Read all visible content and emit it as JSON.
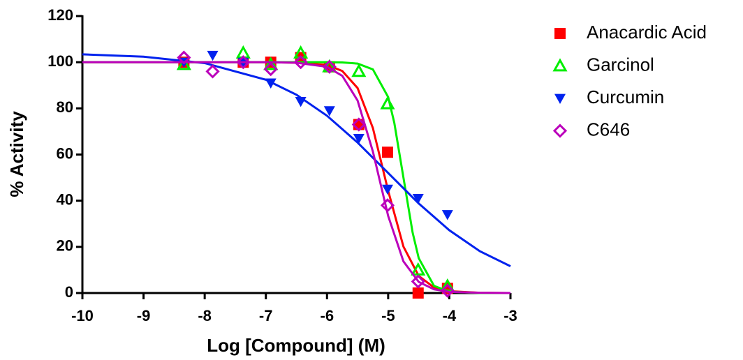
{
  "chart_data": {
    "type": "scatter",
    "xlabel": "Log [Compound] (M)",
    "ylabel": "% Activity",
    "xlim": [
      -10,
      -3
    ],
    "xticks": [
      -10,
      -9,
      -8,
      -7,
      -6,
      -5,
      -4,
      -3
    ],
    "ylim": [
      0,
      120
    ],
    "yticks": [
      0,
      20,
      40,
      60,
      80,
      100,
      120
    ],
    "grid": false,
    "legend": "right",
    "series": [
      {
        "name": "Anacardic Acid",
        "color": "#ff0000",
        "marker": "square",
        "filled": true,
        "x": [
          -8.34,
          -7.37,
          -6.92,
          -6.43,
          -5.96,
          -5.48,
          -5.01,
          -4.51,
          -4.03
        ],
        "values": [
          100,
          100,
          100,
          102,
          98,
          73,
          61,
          0,
          2
        ],
        "curve": {
          "x": [
            -10,
            -9,
            -8,
            -7,
            -6.5,
            -6,
            -5.75,
            -5.5,
            -5.25,
            -5,
            -4.75,
            -4.5,
            -4.25,
            -4,
            -3.5,
            -3
          ],
          "values": [
            100,
            100,
            100,
            100,
            99.8,
            98.8,
            96.2,
            88.8,
            71.5,
            44.3,
            20.1,
            7.4,
            2.4,
            0.8,
            0.1,
            0
          ]
        }
      },
      {
        "name": "Garcinol",
        "color": "#00ee00",
        "marker": "triangle",
        "filled": false,
        "x": [
          -8.34,
          -7.37,
          -6.92,
          -6.43,
          -5.96,
          -5.48,
          -5.01,
          -4.51,
          -4.03
        ],
        "values": [
          99,
          104,
          99,
          104,
          98,
          96,
          82,
          10,
          3
        ],
        "curve": {
          "x": [
            -10,
            -9,
            -8,
            -7,
            -6,
            -5.75,
            -5.5,
            -5.25,
            -5,
            -4.9,
            -4.75,
            -4.6,
            -4.5,
            -4.25,
            -4,
            -3.5,
            -3
          ],
          "values": [
            100,
            100,
            100,
            100,
            100,
            99.9,
            99.4,
            96.9,
            84.9,
            73.8,
            50,
            26.2,
            15.1,
            3.1,
            0.6,
            0,
            0
          ]
        }
      },
      {
        "name": "Curcumin",
        "color": "#0022ee",
        "marker": "triangle-down",
        "filled": true,
        "x": [
          -8.34,
          -7.87,
          -7.37,
          -6.92,
          -6.43,
          -5.96,
          -5.48,
          -5.01,
          -4.51,
          -4.03
        ],
        "values": [
          100,
          103,
          100,
          91,
          83,
          79,
          67,
          45,
          41,
          34
        ],
        "curve": {
          "x": [
            -10,
            -9,
            -8,
            -7,
            -6.5,
            -6,
            -5.5,
            -5,
            -4.5,
            -4,
            -3.5,
            -3
          ],
          "values": [
            103.4,
            102.4,
            99.6,
            92.4,
            85.9,
            76.8,
            65.2,
            52,
            38.8,
            27.2,
            18.1,
            11.6
          ]
        }
      },
      {
        "name": "C646",
        "color": "#bb00bb",
        "marker": "diamond",
        "filled": false,
        "x": [
          -8.34,
          -7.87,
          -7.37,
          -6.92,
          -6.43,
          -5.96,
          -5.48,
          -5.01,
          -4.51,
          -4.03
        ],
        "values": [
          102,
          96,
          100,
          97,
          100,
          98,
          73,
          38,
          5,
          1
        ],
        "curve": {
          "x": [
            -10,
            -9,
            -8,
            -7,
            -6.5,
            -6,
            -5.75,
            -5.5,
            -5.25,
            -5,
            -4.75,
            -4.5,
            -4.25,
            -4,
            -3.5,
            -3
          ],
          "values": [
            100,
            100,
            100,
            100,
            99.8,
            98,
            94.1,
            83.4,
            61.3,
            33.4,
            13.7,
            4.8,
            1.6,
            0.5,
            0.1,
            0
          ]
        }
      }
    ]
  }
}
